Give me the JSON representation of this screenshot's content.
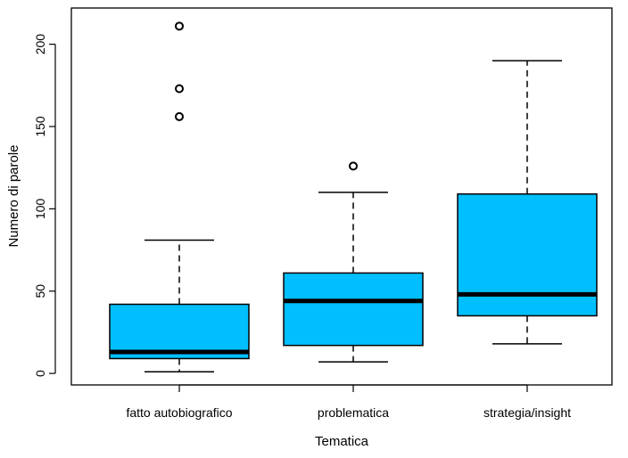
{
  "chart_data": {
    "type": "boxplot",
    "title": "",
    "xlabel": "Tematica",
    "ylabel": "Numero di parole",
    "ylim": [
      -7,
      222
    ],
    "yticks": [
      0,
      50,
      100,
      150,
      200
    ],
    "grid": false,
    "box_color": "#00bfff",
    "categories": [
      "fatto autobiografico",
      "problematica",
      "strategia/insight"
    ],
    "boxes": [
      {
        "category": "fatto autobiografico",
        "whisker_low": 1,
        "q1": 9,
        "median": 13,
        "q3": 42,
        "whisker_high": 81,
        "outliers": [
          156,
          173,
          211
        ]
      },
      {
        "category": "problematica",
        "whisker_low": 7,
        "q1": 17,
        "median": 44,
        "q3": 61,
        "whisker_high": 110,
        "outliers": [
          126
        ]
      },
      {
        "category": "strategia/insight",
        "whisker_low": 18,
        "q1": 35,
        "median": 48,
        "q3": 109,
        "whisker_high": 190,
        "outliers": []
      }
    ]
  }
}
